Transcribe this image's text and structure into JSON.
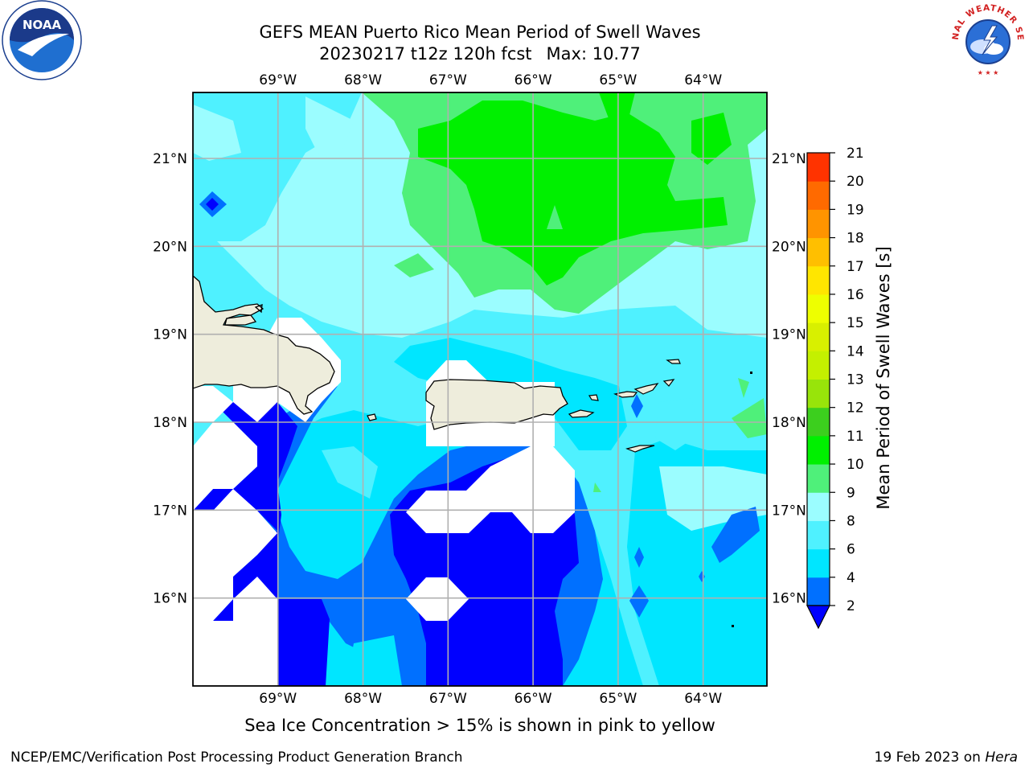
{
  "title": {
    "line1": "GEFS MEAN Puerto Rico Mean Period of Swell Waves",
    "run": "20230217 t12z 120h fcst",
    "max": "Max: 10.77"
  },
  "map": {
    "lon_range": [
      -70,
      -63.25
    ],
    "lat_range": [
      15,
      21.75
    ],
    "lon_ticks": [
      -69,
      -68,
      -67,
      -66,
      -65,
      -64
    ],
    "lon_tick_labels": [
      "69°W",
      "68°W",
      "67°W",
      "66°W",
      "65°W",
      "64°W"
    ],
    "lat_ticks": [
      16,
      17,
      18,
      19,
      20,
      21
    ],
    "lat_tick_labels": [
      "16°N",
      "17°N",
      "18°N",
      "19°N",
      "20°N",
      "21°N"
    ],
    "grid": true,
    "land_color": "#eeeddc",
    "nodata_color": "#ffffff"
  },
  "colorbar": {
    "title": "Mean Period of Swell Waves [s]",
    "levels": [
      2,
      4,
      6,
      8,
      9,
      10,
      11,
      12,
      13,
      14,
      15,
      16,
      17,
      18,
      19,
      20,
      21
    ],
    "level_labels": [
      "2",
      "4",
      "6",
      "8",
      "9",
      "10",
      "11",
      "12",
      "13",
      "14",
      "15",
      "16",
      "17",
      "18",
      "19",
      "20",
      "21"
    ],
    "colors": [
      "#0070ff",
      "#00e6ff",
      "#4ff1ff",
      "#9bfdff",
      "#4ff07a",
      "#00f000",
      "#3ccf1e",
      "#98e40a",
      "#c4f000",
      "#d8f000",
      "#eeff00",
      "#ffe600",
      "#ffbf00",
      "#ff9400",
      "#ff6a00",
      "#ff3300"
    ],
    "under_color": "#0000ff"
  },
  "footnote": "Sea Ice Concentration > 15% is shown in pink to yellow",
  "footer": {
    "left": "NCEP/EMC/Verification Post Processing Product Generation Branch",
    "date": "19 Feb 2023 on ",
    "machine": "Hera"
  },
  "logos": {
    "noaa_text": "NOAA",
    "nws_text": "NATIONAL WEATHER SERVICE"
  }
}
